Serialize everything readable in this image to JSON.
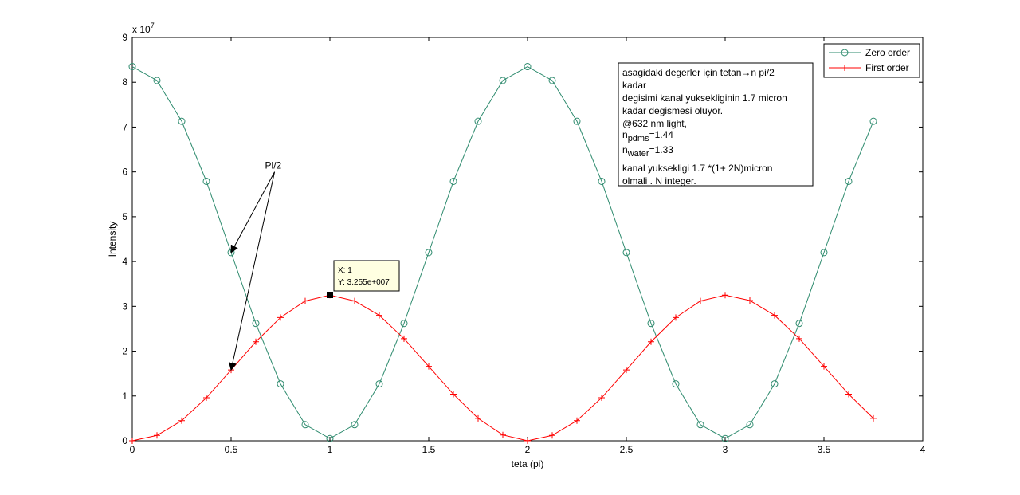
{
  "chart_data": {
    "type": "line",
    "xlabel": "teta (pi)",
    "ylabel": "Intensity",
    "xlim": [
      0,
      4
    ],
    "ylim": [
      0,
      90000000
    ],
    "y_exponent_label": "x 10",
    "y_exponent_power": "7",
    "xticks": [
      {
        "value": 0,
        "label": "0"
      },
      {
        "value": 0.5,
        "label": "0.5"
      },
      {
        "value": 1,
        "label": "1"
      },
      {
        "value": 1.5,
        "label": "1.5"
      },
      {
        "value": 2,
        "label": "2"
      },
      {
        "value": 2.5,
        "label": "2.5"
      },
      {
        "value": 3,
        "label": "3"
      },
      {
        "value": 3.5,
        "label": "3.5"
      },
      {
        "value": 4,
        "label": "4"
      }
    ],
    "yticks": [
      {
        "value": 0,
        "label": "0"
      },
      {
        "value": 10000000,
        "label": "1"
      },
      {
        "value": 20000000,
        "label": "2"
      },
      {
        "value": 30000000,
        "label": "3"
      },
      {
        "value": 40000000,
        "label": "4"
      },
      {
        "value": 50000000,
        "label": "5"
      },
      {
        "value": 60000000,
        "label": "6"
      },
      {
        "value": 70000000,
        "label": "7"
      },
      {
        "value": 80000000,
        "label": "8"
      },
      {
        "value": 90000000,
        "label": "9"
      }
    ],
    "x": [
      0,
      0.125,
      0.25,
      0.375,
      0.5,
      0.625,
      0.75,
      0.875,
      1,
      1.125,
      1.25,
      1.375,
      1.5,
      1.625,
      1.75,
      1.875,
      2,
      2.125,
      2.25,
      2.375,
      2.5,
      2.625,
      2.75,
      2.875,
      3,
      3.125,
      3.25,
      3.375,
      3.5,
      3.625,
      3.75
    ],
    "series": [
      {
        "name": "Zero order",
        "color": "#2e8b6e",
        "marker": "circle",
        "values": [
          83500000,
          80400000,
          71300000,
          57900000,
          42000000,
          26200000,
          12700000,
          3600000,
          500000,
          3600000,
          12700000,
          26200000,
          42000000,
          57900000,
          71300000,
          80400000,
          83500000,
          80400000,
          71300000,
          57900000,
          42000000,
          26200000,
          12700000,
          3600000,
          500000,
          3600000,
          12700000,
          26200000,
          42000000,
          57900000,
          71300000
        ]
      },
      {
        "name": "First order",
        "color": "#ff0000",
        "marker": "plus",
        "values": [
          0,
          1200000,
          4500000,
          9600000,
          15800000,
          22100000,
          27500000,
          31200000,
          32500000,
          31200000,
          28000000,
          22800000,
          16600000,
          10400000,
          5000000,
          1300000,
          0,
          1200000,
          4500000,
          9600000,
          15800000,
          22100000,
          27500000,
          31200000,
          32500000,
          31300000,
          28000000,
          22800000,
          16600000,
          10400000,
          5000000
        ]
      }
    ],
    "legend_placement": "top-right",
    "annotation_text": {
      "line1": "asagidaki degerler için tetan→n pi/2",
      "line2": "kadar",
      "line3": "degisimi kanal yuksekliginin 1.7 micron",
      "line4": "kadar degismesi oluyor.",
      "line5": "@632 nm light,",
      "npdms_base": "n",
      "npdms_sub": "pdms",
      "npdms_value": "=1.44",
      "nwater_base": "n",
      "nwater_sub": "water",
      "nwater_value": "=1.33",
      "line8": "kanal yuksekligi 1.7 *(1+ 2N)micron",
      "line9": "olmali . N integer."
    },
    "arrow_annotation": {
      "text": "Pi/2",
      "from": [
        0.72,
        60000000
      ],
      "targets": [
        {
          "x": 0.5,
          "y": 42000000
        },
        {
          "x": 0.5,
          "y": 15800000
        }
      ]
    },
    "datatip": {
      "x": 1,
      "y": 32550000,
      "x_text": "X: 1",
      "y_text": "Y: 3.255e+007"
    }
  }
}
